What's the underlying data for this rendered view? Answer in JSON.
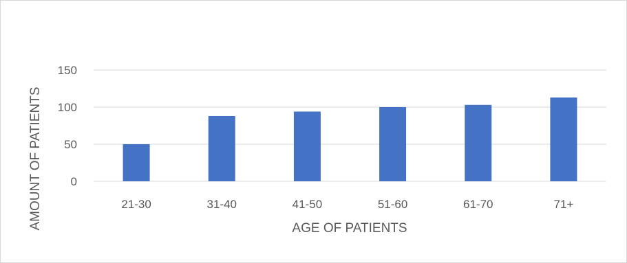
{
  "chart_data": {
    "type": "bar",
    "title": "",
    "xlabel": "AGE OF PATIENTS",
    "ylabel": "AMOUNT OF PATIENTS",
    "categories": [
      "21-30",
      "31-40",
      "41-50",
      "51-60",
      "61-70",
      "71+"
    ],
    "values": [
      50,
      88,
      94,
      100,
      103,
      113
    ],
    "ylim": [
      0,
      150
    ],
    "yticks": [
      0,
      50,
      100,
      150
    ],
    "grid": true,
    "bar_color": "#4472C4",
    "grid_color": "#d9d9d9",
    "legend": "none"
  }
}
